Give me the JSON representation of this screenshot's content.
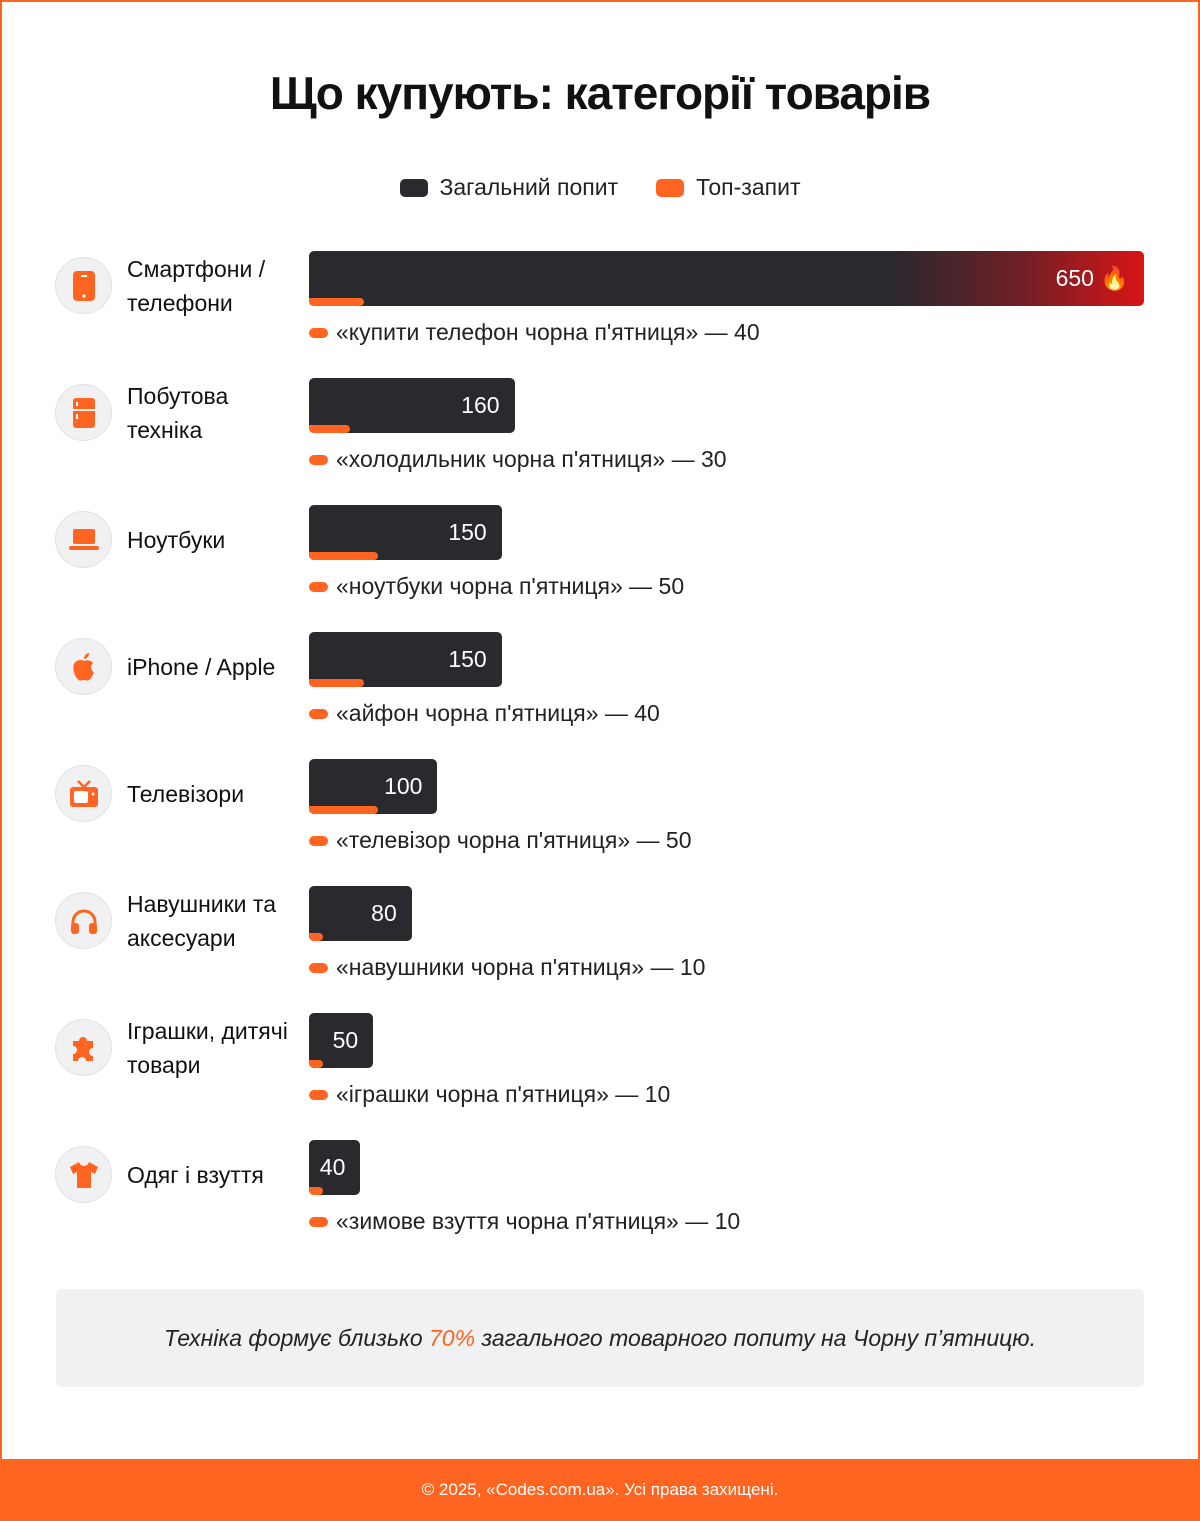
{
  "chart_data": {
    "type": "bar",
    "orientation": "horizontal",
    "title": "Що купують: категорії товарів",
    "legend": {
      "placement": "top",
      "entries": [
        {
          "name": "Загальний попит",
          "color": "#2a292e"
        },
        {
          "name": "Топ-запит",
          "color": "#ff6420"
        }
      ]
    },
    "categories": [
      "Смартфони / телефони",
      "Побутова техніка",
      "Ноутбуки",
      "iPhone / Apple",
      "Телевізори",
      "Навушники та аксесуари",
      "Іграшки, дитячі товари",
      "Одяг і взуття"
    ],
    "icons": [
      "smartphone-icon",
      "fridge-icon",
      "laptop-icon",
      "apple-icon",
      "tv-icon",
      "headphones-icon",
      "puzzle-icon",
      "tshirt-icon"
    ],
    "series": [
      {
        "name": "Загальний попит",
        "values": [
          650,
          160,
          150,
          150,
          100,
          80,
          50,
          40
        ]
      },
      {
        "name": "Топ-запит",
        "values": [
          40,
          30,
          50,
          40,
          50,
          10,
          10,
          10
        ]
      }
    ],
    "value_labels": [
      "650",
      "160",
      "150",
      "150",
      "100",
      "80",
      "50",
      "40"
    ],
    "highlight_emoji": "🔥",
    "top_queries": [
      "«купити телефон чорна п'ятниця» — 40",
      "«холодильник чорна п'ятниця» — 30",
      "«ноутбуки чорна п'ятниця» — 50",
      "«айфон чорна п'ятниця» — 40",
      "«телевізор чорна п'ятниця» — 50",
      "«навушники чорна п'ятниця» — 10",
      "«іграшки чорна п'ятниця» — 10",
      "«зимове взуття чорна п'ятниця» — 10"
    ],
    "colors": {
      "bar": "#2a292e",
      "accent": "#ff6420",
      "highlight": "#d81417"
    }
  },
  "note": {
    "before": "Техніка формує близько ",
    "accent": "70%",
    "after": " загального товарного попиту на Чорну п’ятницю."
  },
  "footer": "© 2025, «Codes.com.ua». Усі права захищені."
}
